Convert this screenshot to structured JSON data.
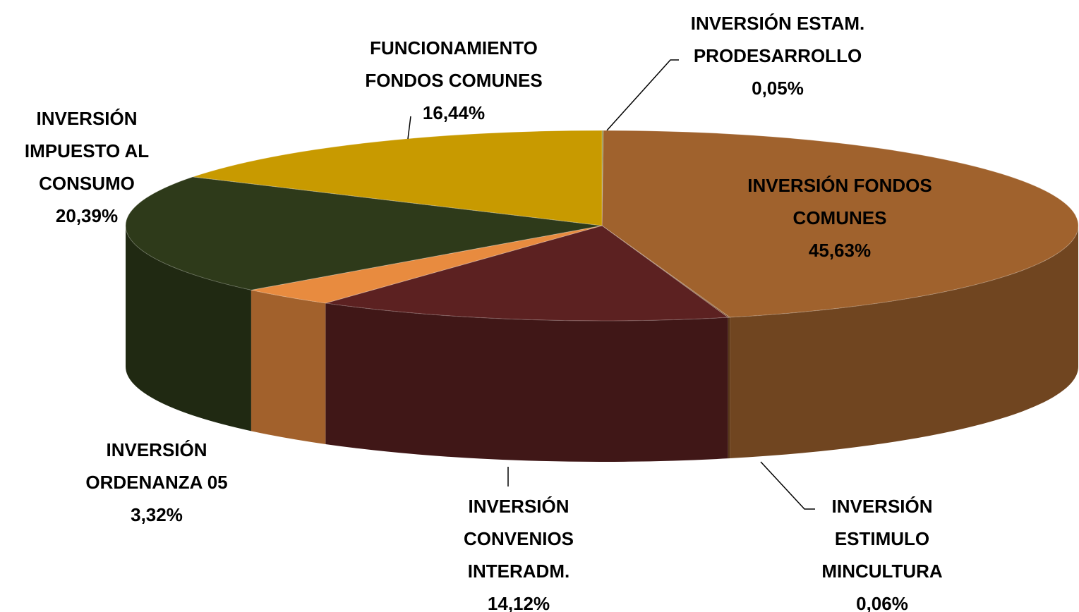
{
  "chart_data": {
    "type": "pie",
    "categories": [
      "INVERSIÓN ESTAM. PRODESARROLLO",
      "INVERSIÓN FONDOS COMUNES",
      "INVERSIÓN ESTIMULO MINCULTURA",
      "INVERSIÓN CONVENIOS INTERADM.",
      "INVERSIÓN ORDENANZA 05",
      "INVERSIÓN IMPUESTO AL CONSUMO",
      "FUNCIONAMIENTO FONDOS COMUNES"
    ],
    "values": [
      0.05,
      45.63,
      0.06,
      14.12,
      3.32,
      20.39,
      16.44
    ],
    "value_labels": [
      "0,05%",
      "45,63%",
      "0,06%",
      "14,12%",
      "3,32%",
      "20,39%",
      "16,44%"
    ],
    "colors": [
      "#8a8a3a",
      "#a0622d",
      "#7a4a20",
      "#5c2121",
      "#e88b3f",
      "#2e3a1a",
      "#c89a00"
    ]
  }
}
